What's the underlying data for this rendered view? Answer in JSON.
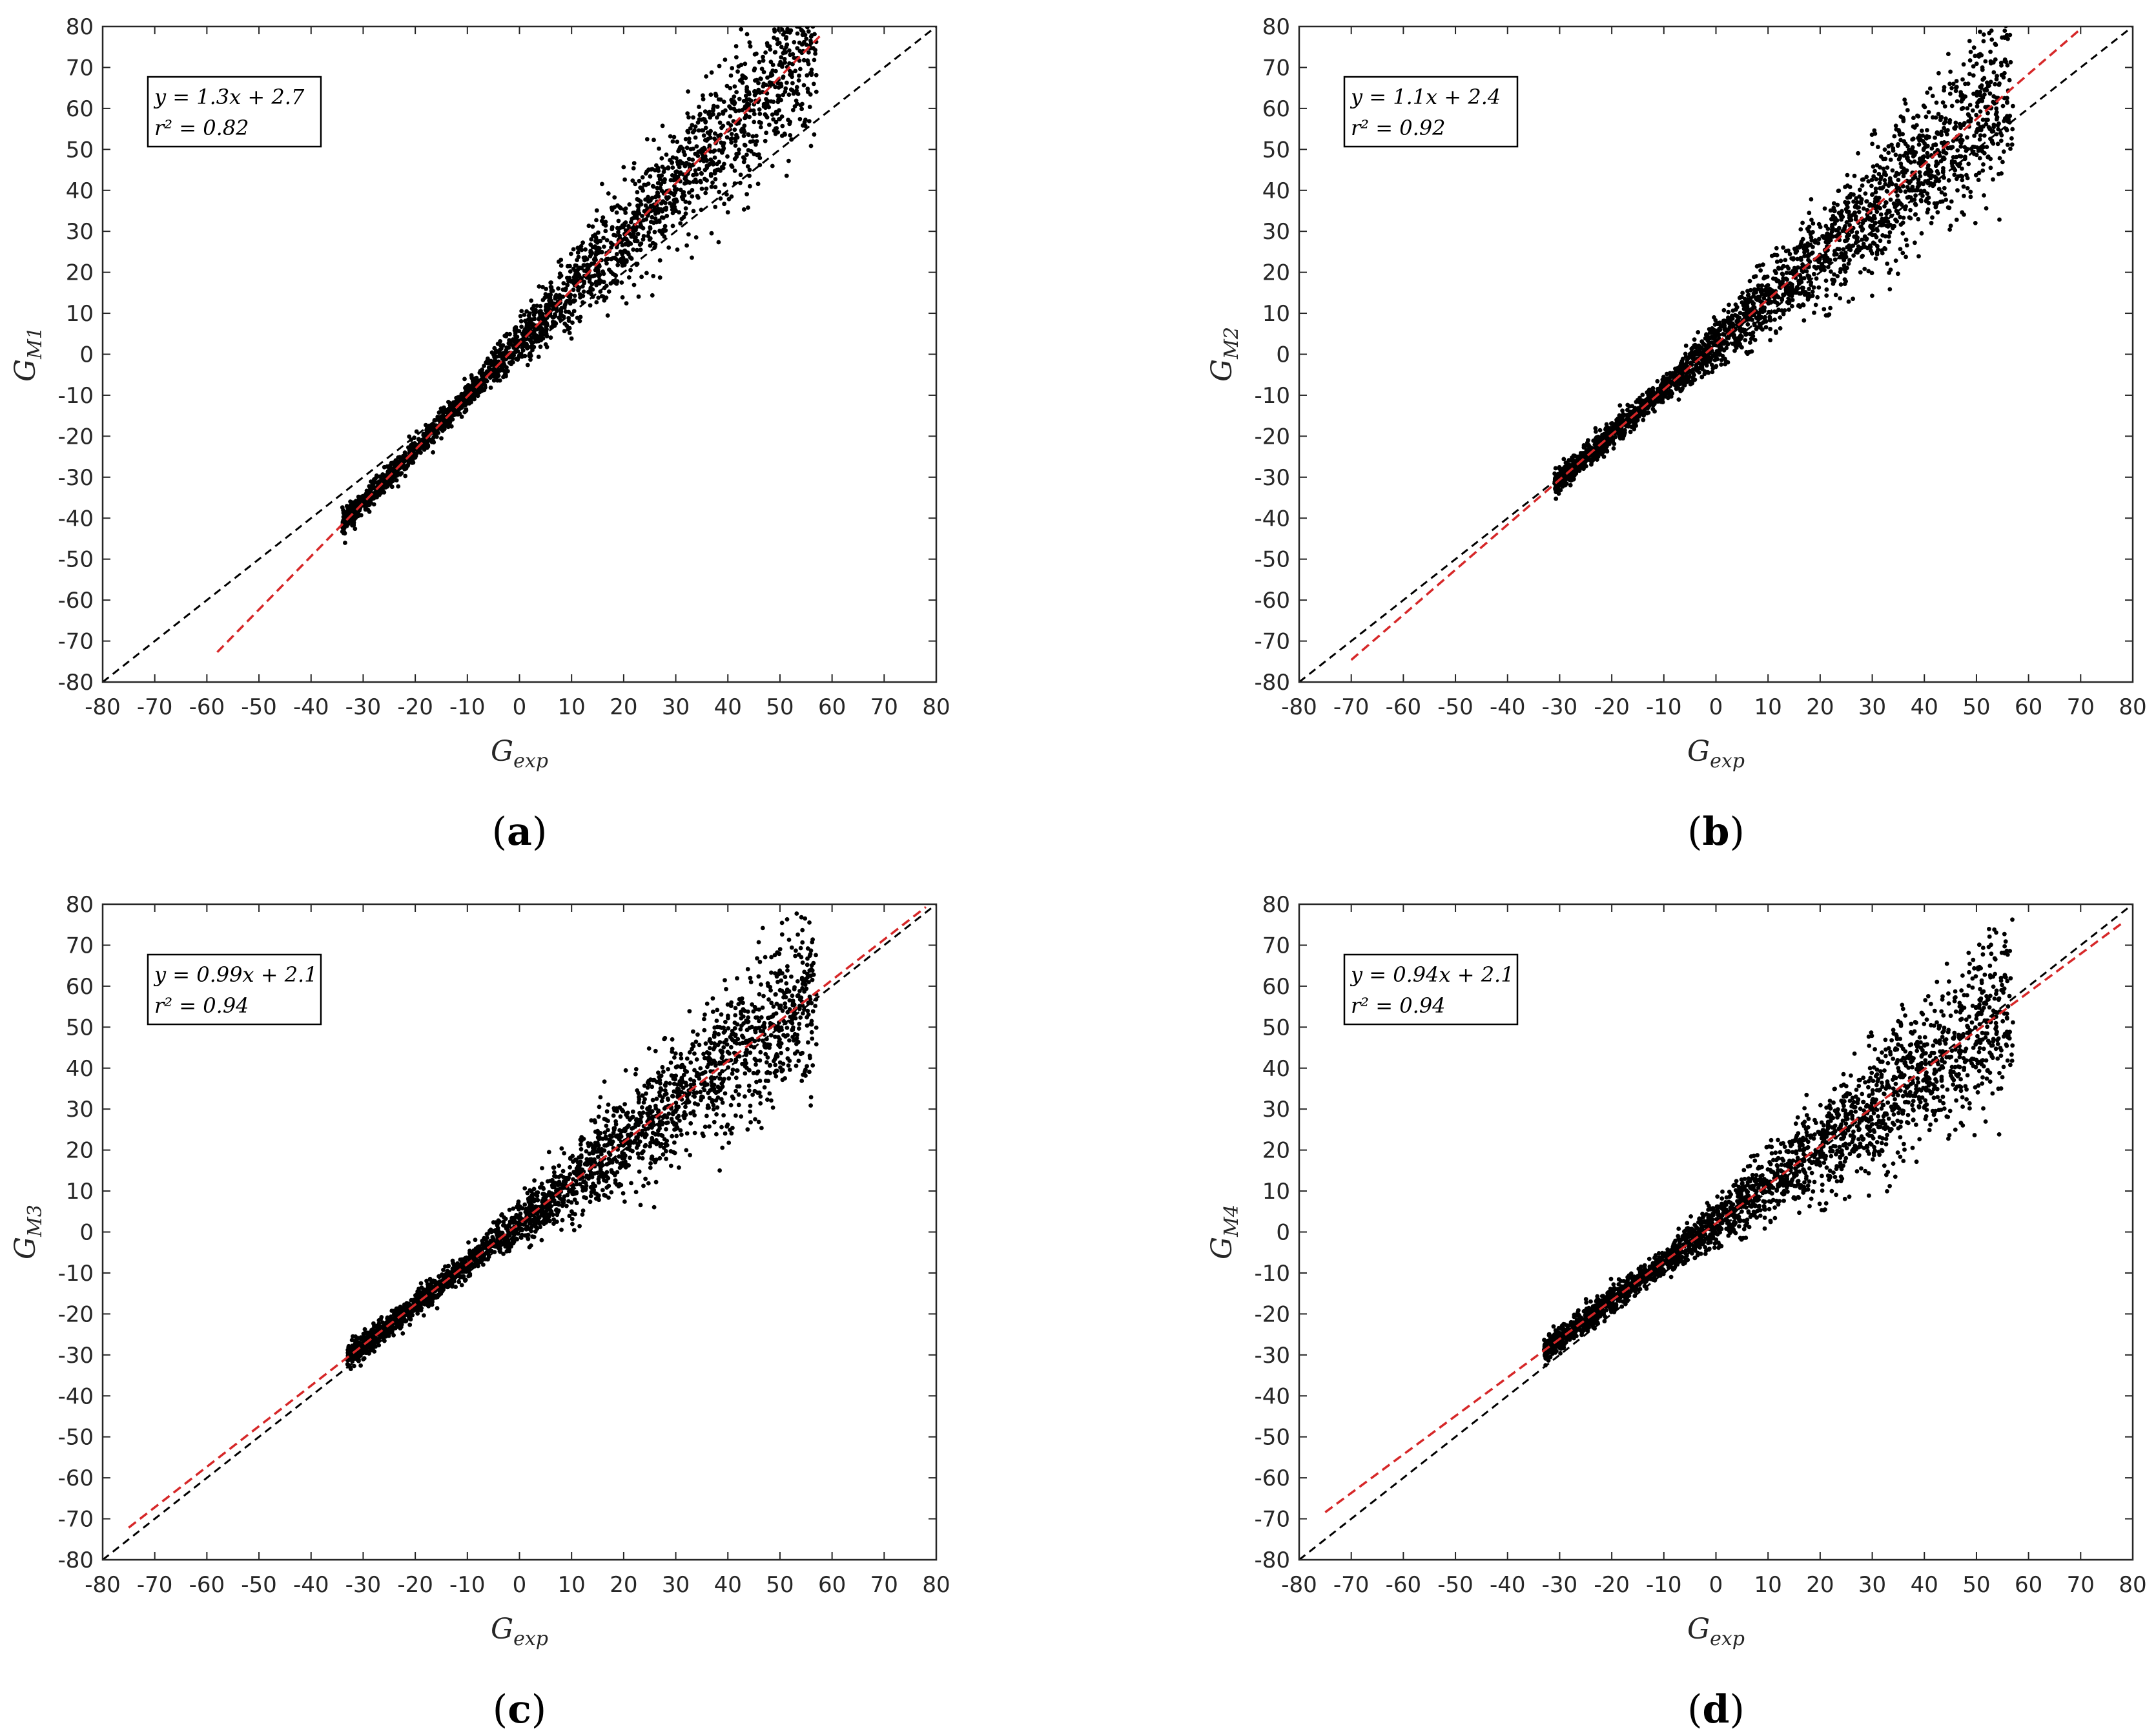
{
  "chart_data": [
    {
      "type": "scatter",
      "panel_label": "a",
      "xlabel_base": "G",
      "xlabel_sub": "exp",
      "ylabel_base": "G",
      "ylabel_sub": "M1",
      "xlim": [
        -80,
        80
      ],
      "ylim": [
        -80,
        80
      ],
      "xticks": [
        -80,
        -70,
        -60,
        -50,
        -40,
        -30,
        -20,
        -10,
        0,
        10,
        20,
        30,
        40,
        50,
        60,
        70,
        80
      ],
      "yticks": [
        -80,
        -70,
        -60,
        -50,
        -40,
        -30,
        -20,
        -10,
        0,
        10,
        20,
        30,
        40,
        50,
        60,
        70,
        80
      ],
      "annotation": [
        "y = 1.3x + 2.7",
        "r² = 0.82"
      ],
      "fit_line": {
        "slope": 1.3,
        "intercept": 2.7,
        "x_range": [
          -58,
          58
        ],
        "color": "#d62728"
      },
      "identity_line": {
        "x_range": [
          -80,
          80
        ],
        "color": "#000000"
      },
      "scatter": {
        "x_range": [
          -34,
          57
        ],
        "color": "#000000"
      },
      "grid": false
    },
    {
      "type": "scatter",
      "panel_label": "b",
      "xlabel_base": "G",
      "xlabel_sub": "exp",
      "ylabel_base": "G",
      "ylabel_sub": "M2",
      "xlim": [
        -80,
        80
      ],
      "ylim": [
        -80,
        80
      ],
      "xticks": [
        -80,
        -70,
        -60,
        -50,
        -40,
        -30,
        -20,
        -10,
        0,
        10,
        20,
        30,
        40,
        50,
        60,
        70,
        80
      ],
      "yticks": [
        -80,
        -70,
        -60,
        -50,
        -40,
        -30,
        -20,
        -10,
        0,
        10,
        20,
        30,
        40,
        50,
        60,
        70,
        80
      ],
      "annotation": [
        "y = 1.1x + 2.4",
        "r² = 0.92"
      ],
      "fit_line": {
        "slope": 1.1,
        "intercept": 2.4,
        "x_range": [
          -70,
          70
        ],
        "color": "#d62728"
      },
      "identity_line": {
        "x_range": [
          -80,
          80
        ],
        "color": "#000000"
      },
      "scatter": {
        "x_range": [
          -31,
          57
        ],
        "color": "#000000"
      },
      "grid": false
    },
    {
      "type": "scatter",
      "panel_label": "c",
      "xlabel_base": "G",
      "xlabel_sub": "exp",
      "ylabel_base": "G",
      "ylabel_sub": "M3",
      "xlim": [
        -80,
        80
      ],
      "ylim": [
        -80,
        80
      ],
      "xticks": [
        -80,
        -70,
        -60,
        -50,
        -40,
        -30,
        -20,
        -10,
        0,
        10,
        20,
        30,
        40,
        50,
        60,
        70,
        80
      ],
      "yticks": [
        -80,
        -70,
        -60,
        -50,
        -40,
        -30,
        -20,
        -10,
        0,
        10,
        20,
        30,
        40,
        50,
        60,
        70,
        80
      ],
      "annotation": [
        "y = 0.99x + 2.1",
        "r² = 0.94"
      ],
      "fit_line": {
        "slope": 0.99,
        "intercept": 2.1,
        "x_range": [
          -75,
          78
        ],
        "color": "#d62728"
      },
      "identity_line": {
        "x_range": [
          -80,
          80
        ],
        "color": "#000000"
      },
      "scatter": {
        "x_range": [
          -33,
          57
        ],
        "color": "#000000"
      },
      "grid": false
    },
    {
      "type": "scatter",
      "panel_label": "d",
      "xlabel_base": "G",
      "xlabel_sub": "exp",
      "ylabel_base": "G",
      "ylabel_sub": "M4",
      "xlim": [
        -80,
        80
      ],
      "ylim": [
        -80,
        80
      ],
      "xticks": [
        -80,
        -70,
        -60,
        -50,
        -40,
        -30,
        -20,
        -10,
        0,
        10,
        20,
        30,
        40,
        50,
        60,
        70,
        80
      ],
      "yticks": [
        -80,
        -70,
        -60,
        -50,
        -40,
        -30,
        -20,
        -10,
        0,
        10,
        20,
        30,
        40,
        50,
        60,
        70,
        80
      ],
      "annotation": [
        "y = 0.94x + 2.1",
        "r² = 0.94"
      ],
      "fit_line": {
        "slope": 0.94,
        "intercept": 2.1,
        "x_range": [
          -75,
          78
        ],
        "color": "#d62728"
      },
      "identity_line": {
        "x_range": [
          -80,
          80
        ],
        "color": "#000000"
      },
      "scatter": {
        "x_range": [
          -33,
          57
        ],
        "color": "#000000"
      },
      "grid": false
    }
  ]
}
